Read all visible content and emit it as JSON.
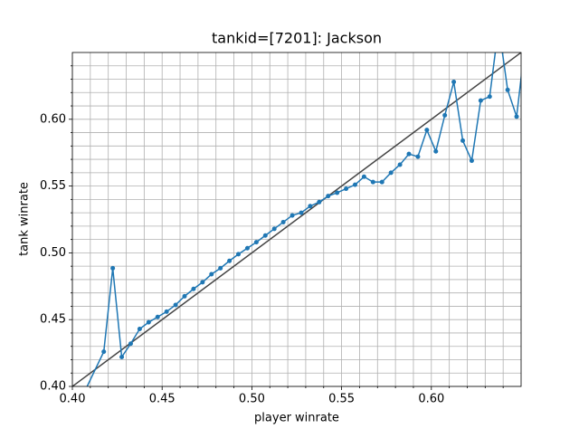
{
  "chart_data": {
    "type": "line",
    "title": "tankid=[7201]: Jackson",
    "x_label": "player winrate",
    "y_label": "tank winrate",
    "x": [
      0.4075,
      0.4175,
      0.4225,
      0.4275,
      0.4325,
      0.4375,
      0.4425,
      0.4475,
      0.4525,
      0.4575,
      0.4625,
      0.4675,
      0.4725,
      0.4775,
      0.4825,
      0.4875,
      0.4925,
      0.4975,
      0.5025,
      0.5075,
      0.5125,
      0.5175,
      0.5225,
      0.5275,
      0.5325,
      0.5375,
      0.5425,
      0.5475,
      0.5525,
      0.5575,
      0.5625,
      0.5675,
      0.5725,
      0.5775,
      0.5825,
      0.5875,
      0.5925,
      0.5975,
      0.6025,
      0.6075,
      0.6125,
      0.6175,
      0.6225,
      0.6275,
      0.6325,
      0.6375,
      0.6425,
      0.6475,
      0.6525
    ],
    "series": [
      {
        "color": "#1f77b4",
        "values": [
          0.398,
          0.426,
          0.4885,
          0.422,
          0.432,
          0.443,
          0.448,
          0.452,
          0.456,
          0.461,
          0.4675,
          0.473,
          0.478,
          0.484,
          0.4885,
          0.494,
          0.499,
          0.5035,
          0.508,
          0.513,
          0.518,
          0.523,
          0.528,
          0.53,
          0.535,
          0.538,
          0.5425,
          0.545,
          0.548,
          0.551,
          0.557,
          0.553,
          0.553,
          0.56,
          0.566,
          0.574,
          0.572,
          0.592,
          0.576,
          0.603,
          0.628,
          0.584,
          0.569,
          0.614,
          0.617,
          0.67,
          0.622,
          0.602,
          0.66
        ]
      }
    ],
    "xlim": [
      0.4,
      0.65
    ],
    "ylim": [
      0.4,
      0.65
    ],
    "xticks": [
      {
        "value": 0.4,
        "label": "0.40"
      },
      {
        "value": 0.45,
        "label": "0.45"
      },
      {
        "value": 0.5,
        "label": "0.50"
      },
      {
        "value": 0.55,
        "label": "0.55"
      },
      {
        "value": 0.6,
        "label": "0.60"
      }
    ],
    "yticks": [
      {
        "value": 0.4,
        "label": "0.40"
      },
      {
        "value": 0.45,
        "label": "0.45"
      },
      {
        "value": 0.5,
        "label": "0.50"
      },
      {
        "value": 0.55,
        "label": "0.55"
      },
      {
        "value": 0.6,
        "label": "0.60"
      }
    ],
    "xminorticks": [
      0.41,
      0.42,
      0.43,
      0.44,
      0.46,
      0.47,
      0.48,
      0.49,
      0.51,
      0.52,
      0.53,
      0.54,
      0.56,
      0.57,
      0.58,
      0.59,
      0.61,
      0.62,
      0.63,
      0.64
    ],
    "yminorticks": [
      0.41,
      0.42,
      0.43,
      0.44,
      0.46,
      0.47,
      0.48,
      0.49,
      0.51,
      0.52,
      0.53,
      0.54,
      0.56,
      0.57,
      0.58,
      0.59,
      0.61,
      0.62,
      0.63,
      0.64
    ],
    "grid": true,
    "identity_line": true,
    "identity_color": "#444444"
  }
}
